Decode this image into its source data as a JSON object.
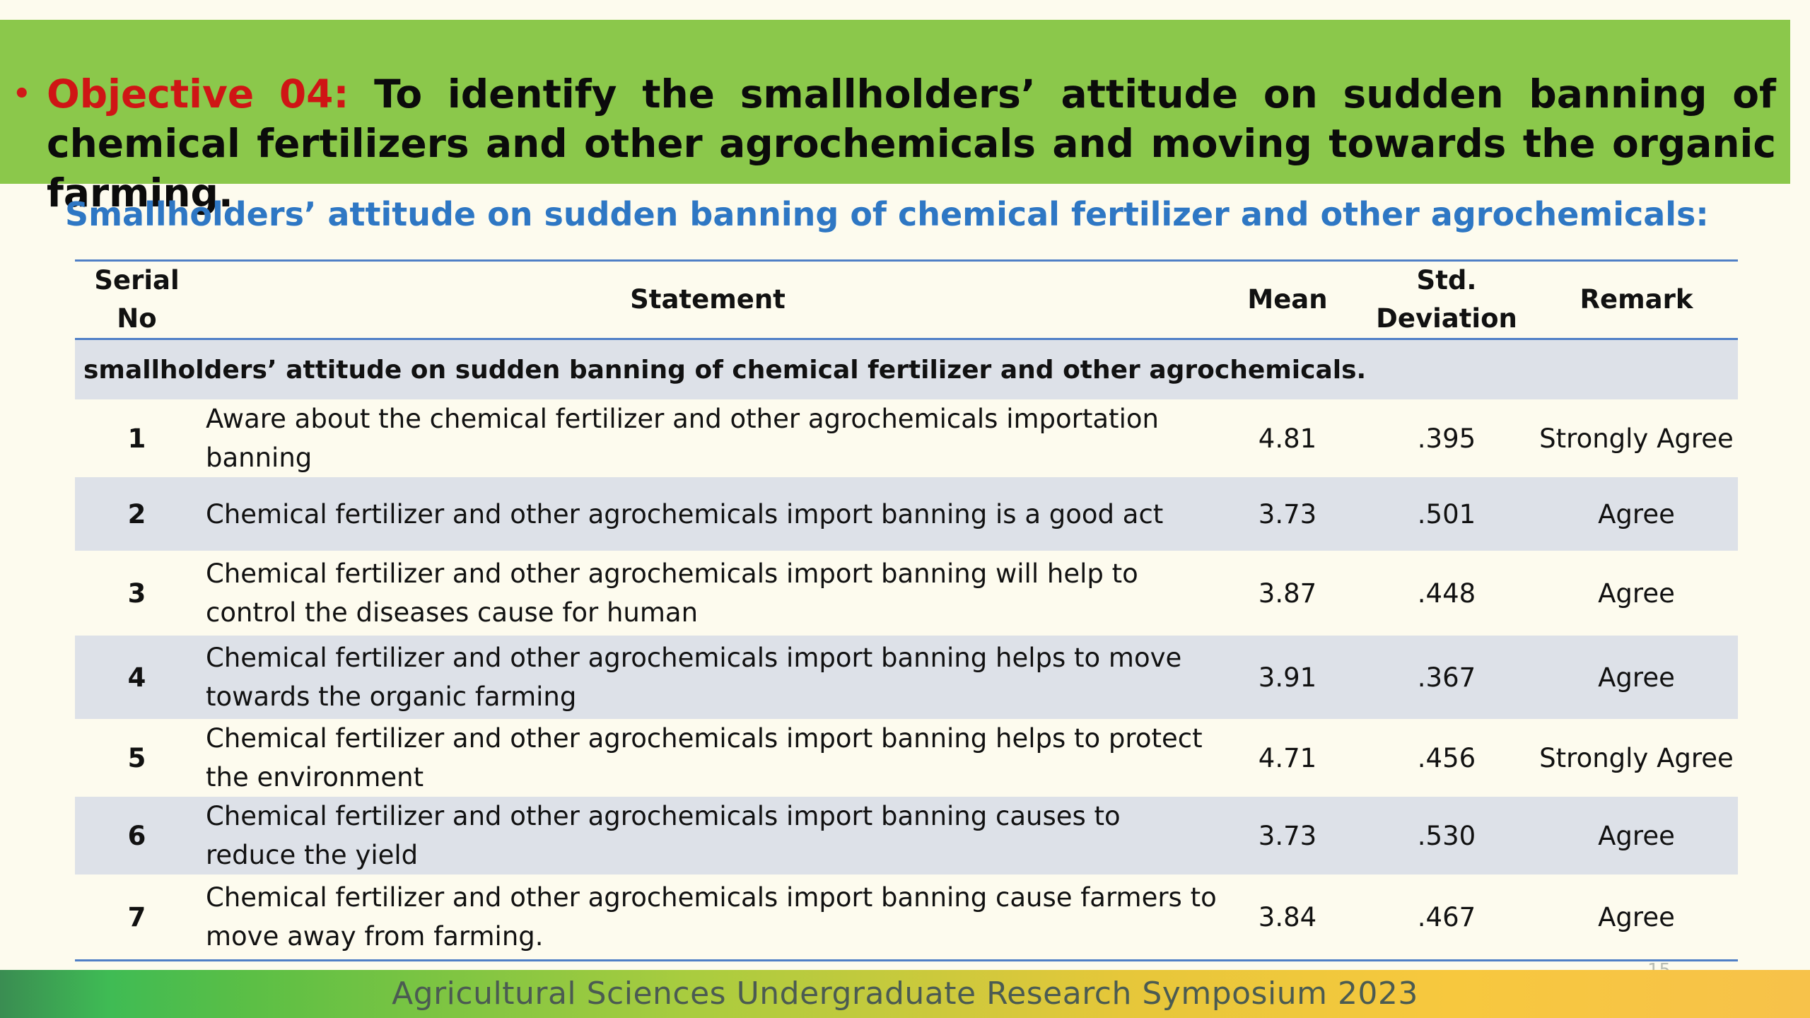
{
  "slide": {
    "bullet": "•",
    "objective_label": "Objective 04:",
    "objective_text": "To identify the smallholders’ attitude on sudden banning of chemical fertilizers and other agrochemicals and moving towards the organic farming.",
    "subtitle": "Smallholders’ attitude on sudden banning of chemical fertilizer and other agrochemicals:",
    "page_number": "15",
    "footer": "Agricultural Sciences Undergraduate Research Symposium 2023"
  },
  "table": {
    "headers": {
      "serial_line1": "Serial",
      "serial_line2": "No",
      "statement": "Statement",
      "mean": "Mean",
      "std_line1": "Std.",
      "std_line2": "Deviation",
      "remark": "Remark"
    },
    "section_label": "smallholders’ attitude on sudden banning of chemical fertilizer and other agrochemicals.",
    "rows": [
      {
        "no": "1",
        "statement": "Aware about the chemical fertilizer and other agrochemicals importation banning",
        "mean": "4.81",
        "sd": ".395",
        "remark": "Strongly Agree"
      },
      {
        "no": "2",
        "statement": "Chemical fertilizer and other agrochemicals import banning is a good act",
        "mean": "3.73",
        "sd": ".501",
        "remark": "Agree"
      },
      {
        "no": "3",
        "statement": "Chemical fertilizer and other agrochemicals import banning will help to control the diseases cause for human",
        "mean": "3.87",
        "sd": ".448",
        "remark": "Agree"
      },
      {
        "no": "4",
        "statement": "Chemical fertilizer and other agrochemicals import banning helps to move towards the organic farming",
        "mean": "3.91",
        "sd": ".367",
        "remark": "Agree"
      },
      {
        "no": "5",
        "statement": "Chemical fertilizer and other agrochemicals import banning helps to protect the environment",
        "mean": "4.71",
        "sd": ".456",
        "remark": "Strongly Agree"
      },
      {
        "no": "6",
        "statement": "Chemical fertilizer and other agrochemicals import banning causes to reduce the yield",
        "mean": "3.73",
        "sd": ".530",
        "remark": "Agree"
      },
      {
        "no": "7",
        "statement": "Chemical fertilizer and other agrochemicals import banning cause farmers to move away from farming.",
        "mean": "3.84",
        "sd": ".467",
        "remark": "Agree"
      }
    ]
  },
  "colors": {
    "banner": "#8bc84b",
    "objective_label": "#cf1515",
    "subtitle": "#2e77c4",
    "rule": "#4f7fc6",
    "band": "#dde1e8"
  }
}
